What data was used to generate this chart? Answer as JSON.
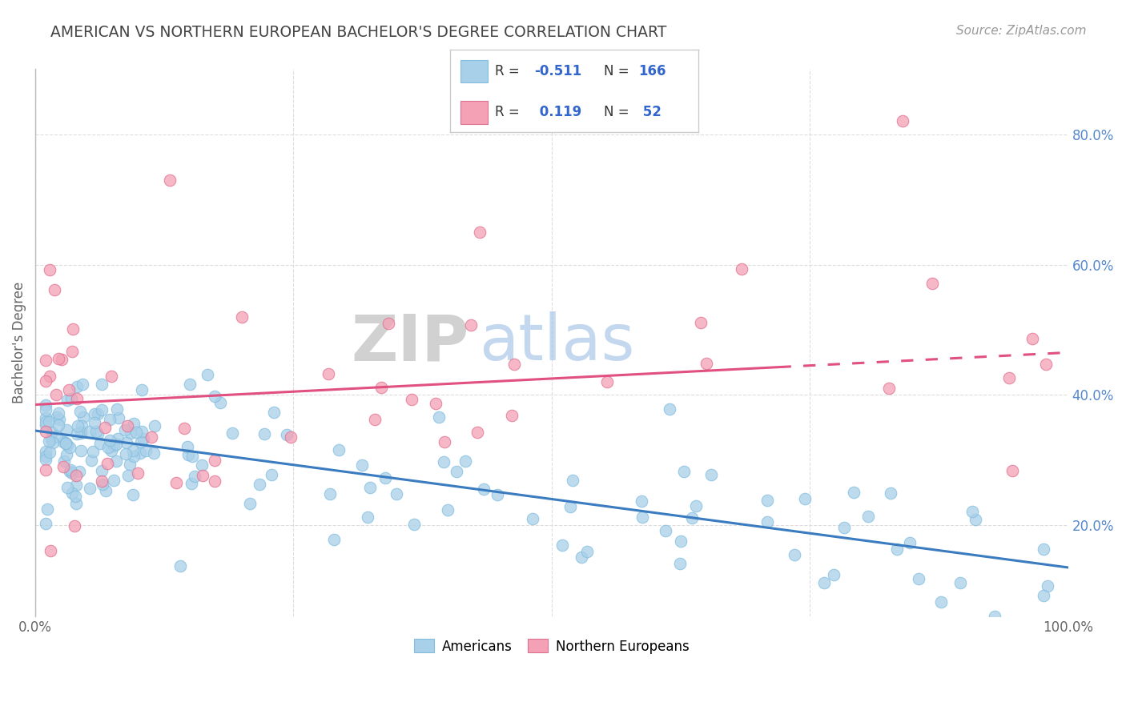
{
  "title": "AMERICAN VS NORTHERN EUROPEAN BACHELOR'S DEGREE CORRELATION CHART",
  "source": "Source: ZipAtlas.com",
  "ylabel": "Bachelor's Degree",
  "watermark_gray": "ZIP",
  "watermark_blue": "atlas",
  "xlim": [
    0.0,
    1.0
  ],
  "ylim": [
    0.06,
    0.9
  ],
  "ytick_labels_right": [
    "20.0%",
    "40.0%",
    "60.0%",
    "80.0%"
  ],
  "ytick_positions_right": [
    0.2,
    0.4,
    0.6,
    0.8
  ],
  "color_american": "#82bde0",
  "color_american_fill": "#a8d0e8",
  "color_american_line": "#3a7cbf",
  "color_northern_european": "#f4a0b5",
  "color_northern_european_line": "#e05080",
  "title_color": "#444444",
  "grid_color": "#dddddd",
  "background_color": "#ffffff",
  "trend_american_x0": 0.0,
  "trend_american_y0": 0.345,
  "trend_american_x1": 1.0,
  "trend_american_y1": 0.135,
  "trend_ne_x0": 0.0,
  "trend_ne_y0": 0.385,
  "trend_ne_x1": 1.0,
  "trend_ne_y1": 0.465,
  "trend_ne_solid_end": 0.72
}
